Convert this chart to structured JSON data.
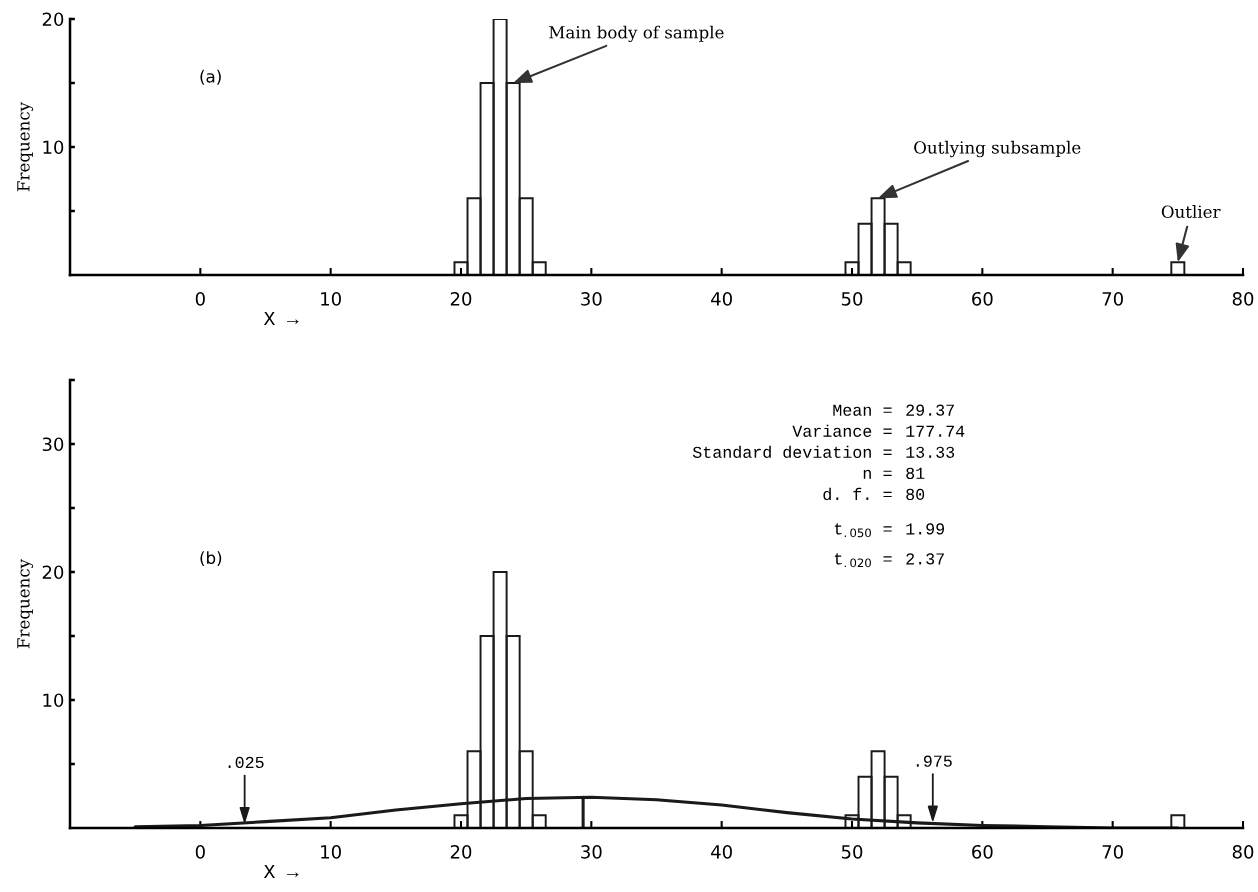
{
  "chart_data": [
    {
      "type": "histogram",
      "ylabel": "Frequency",
      "xlabel": "X →",
      "bins": [
        19.5,
        20.5,
        21.5,
        22.5,
        23.5,
        24.5,
        25.5,
        26.5,
        27.5,
        28.5,
        29.5,
        30.5,
        31.5,
        32.5,
        33.5,
        34.5,
        35.5,
        36.5,
        37.5,
        38.5,
        39.5,
        40.5,
        41.5,
        42.5,
        43.5,
        44.5,
        45.5,
        46.5,
        47.5,
        48.5,
        49.5,
        50.5,
        51.5,
        52.5,
        53.5,
        54.5,
        55.5,
        56.5,
        57.5,
        58.5,
        59.5,
        60.5,
        61.5,
        62.5,
        63.5,
        64.5,
        65.5,
        66.5,
        67.5,
        68.5,
        69.5,
        70.5,
        71.5,
        72.5,
        73.5,
        74.5,
        75.5
      ],
      "values": [
        1,
        6,
        15,
        20,
        15,
        6,
        1,
        0,
        0,
        0,
        0,
        0,
        0,
        0,
        0,
        0,
        0,
        0,
        0,
        0,
        0,
        0,
        0,
        0,
        0,
        0,
        0,
        0,
        0,
        0,
        1,
        4,
        6,
        4,
        1,
        0,
        0,
        0,
        0,
        0,
        0,
        0,
        0,
        0,
        0,
        0,
        0,
        0,
        0,
        0,
        0,
        0,
        0,
        0,
        0,
        1
      ],
      "color": "#1a1a1a",
      "xlim": [
        -10,
        80
      ],
      "xticks": [
        0,
        10,
        20,
        30,
        40,
        50,
        60,
        70,
        80
      ],
      "ylim": [
        0,
        20
      ],
      "yticks": [
        {
          "value": 5,
          "label": null
        },
        10,
        {
          "value": 15,
          "label": null
        },
        20
      ],
      "grid": false,
      "legend": false,
      "annotations": [
        "(a)",
        {
          "text": "Main body of sample",
          "x": 24,
          "y": 15
        },
        {
          "text": "Outlying subsample",
          "x": 52,
          "y": 6
        },
        {
          "text": "Outlier",
          "x": 75,
          "y": 1
        }
      ]
    },
    {
      "type": "histogram",
      "ylabel": "Frequency",
      "xlabel": "X →",
      "series": [
        {
          "color": "#1a1a1a",
          "bins": [
            19.5,
            20.5,
            21.5,
            22.5,
            23.5,
            24.5,
            25.5,
            26.5,
            27.5,
            28.5,
            29.5,
            30.5,
            31.5,
            32.5,
            33.5,
            34.5,
            35.5,
            36.5,
            37.5,
            38.5,
            39.5,
            40.5,
            41.5,
            42.5,
            43.5,
            44.5,
            45.5,
            46.5,
            47.5,
            48.5,
            49.5,
            50.5,
            51.5,
            52.5,
            53.5,
            54.5,
            55.5,
            56.5,
            57.5,
            58.5,
            59.5,
            60.5,
            61.5,
            62.5,
            63.5,
            64.5,
            65.5,
            66.5,
            67.5,
            68.5,
            69.5,
            70.5,
            71.5,
            72.5,
            73.5,
            74.5,
            75.5
          ],
          "values": [
            1,
            6,
            15,
            20,
            15,
            6,
            1,
            0,
            0,
            0,
            0,
            0,
            0,
            0,
            0,
            0,
            0,
            0,
            0,
            0,
            0,
            0,
            0,
            0,
            0,
            0,
            0,
            0,
            0,
            0,
            1,
            4,
            6,
            4,
            1,
            0,
            0,
            0,
            0,
            0,
            0,
            0,
            0,
            0,
            0,
            0,
            0,
            0,
            0,
            0,
            0,
            0,
            0,
            0,
            0,
            1
          ]
        },
        {
          "type": "line",
          "color": "#1a1a1a",
          "x": [
            -5,
            0,
            5,
            10,
            15,
            20,
            25,
            30,
            35,
            40,
            45,
            50,
            55,
            60,
            65,
            70,
            75
          ],
          "values": [
            0.1,
            0.2,
            0.5,
            0.8,
            1.4,
            1.9,
            2.3,
            2.4,
            2.2,
            1.8,
            1.2,
            0.7,
            0.4,
            0.2,
            0.1,
            0.0,
            0.0
          ]
        },
        {
          "type": "line",
          "color": "#1a1a1a",
          "x": [
            29.37,
            29.37
          ],
          "values": [
            0,
            2.4
          ]
        }
      ],
      "xlim": [
        -10,
        80
      ],
      "xticks": [
        0,
        10,
        20,
        30,
        40,
        50,
        60,
        70,
        80
      ],
      "ylim": [
        0,
        35
      ],
      "yticks": [
        {
          "value": 5,
          "label": null
        },
        10,
        {
          "value": 15,
          "label": null
        },
        20,
        {
          "value": 25,
          "label": null
        },
        30,
        {
          "value": 35,
          "label": null
        }
      ],
      "grid": false,
      "legend": false,
      "annotations": [
        "(b)",
        "Mean = 29.37",
        "Variance = 177.74",
        "Standard deviation = 13.33",
        "n = 81",
        "d. f. = 80",
        "t$_{.050}$ = 1.99",
        "t$_{.020}$ = 2.37",
        {
          "text": ".025",
          "x": 3.4,
          "y": 0.3
        },
        {
          "text": ".975",
          "x": 56.2,
          "y": 0.4
        }
      ]
    }
  ]
}
